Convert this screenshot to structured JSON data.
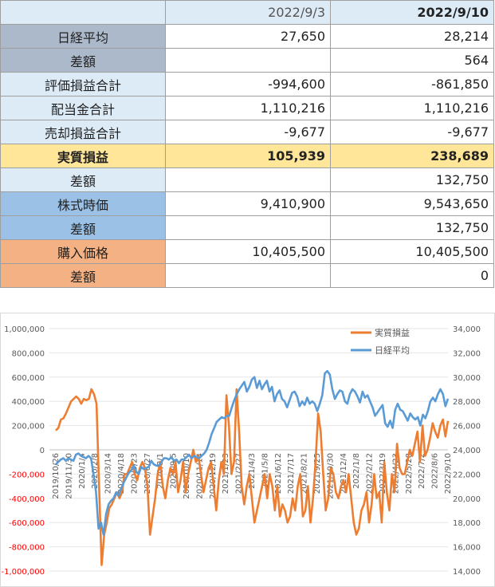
{
  "table": {
    "headers": [
      "",
      "2022/9/3",
      "2022/9/10"
    ],
    "rows": [
      {
        "label": "日経平均",
        "v1": "27,650",
        "v2": "28,214",
        "bg": "#acb9ca",
        "bold": false,
        "neg1": false,
        "neg2": false
      },
      {
        "label": "差額",
        "v1": "",
        "v2": "564",
        "bg": "#acb9ca",
        "bold": false,
        "neg1": false,
        "neg2": false
      },
      {
        "label": "評価損益合計",
        "v1": "-994,600",
        "v2": "-861,850",
        "bg": "#ddebf7",
        "bold": false,
        "neg1": true,
        "neg2": true
      },
      {
        "label": "配当金合計",
        "v1": "1,110,216",
        "v2": "1,110,216",
        "bg": "#ddebf7",
        "bold": false,
        "neg1": false,
        "neg2": false
      },
      {
        "label": "売却損益合計",
        "v1": "-9,677",
        "v2": "-9,677",
        "bg": "#ddebf7",
        "bold": false,
        "neg1": true,
        "neg2": true
      },
      {
        "label": "実質損益",
        "v1": "105,939",
        "v2": "238,689",
        "bg": "#ffe699",
        "bold": true,
        "rowbg": "#ffe699",
        "neg1": false,
        "neg2": false
      },
      {
        "label": "差額",
        "v1": "",
        "v2": "132,750",
        "bg": "#ddebf7",
        "bold": false,
        "neg1": false,
        "neg2": false
      },
      {
        "label": "株式時価",
        "v1": "9,410,900",
        "v2": "9,543,650",
        "bg": "#9bc2e6",
        "bold": false,
        "neg1": false,
        "neg2": false
      },
      {
        "label": "差額",
        "v1": "",
        "v2": "132,750",
        "bg": "#9bc2e6",
        "bold": false,
        "neg1": false,
        "neg2": false
      },
      {
        "label": "購入価格",
        "v1": "10,405,500",
        "v2": "10,405,500",
        "bg": "#f4b183",
        "bold": false,
        "neg1": false,
        "neg2": false
      },
      {
        "label": "差額",
        "v1": "",
        "v2": "0",
        "bg": "#f4b183",
        "bold": false,
        "neg1": false,
        "neg2": false
      }
    ]
  },
  "chart_data": {
    "type": "line",
    "left_axis": {
      "min": -1000000,
      "max": 1000000,
      "step": 200000,
      "tick_labels": [
        "1,000,000",
        "800,000",
        "600,000",
        "400,000",
        "200,000",
        "0",
        "-200,000",
        "-400,000",
        "-600,000",
        "-800,000",
        "-1,000,000"
      ]
    },
    "right_axis": {
      "min": 14000,
      "max": 34000,
      "step": 2000,
      "tick_labels": [
        "34,000",
        "32,000",
        "30,000",
        "28,000",
        "26,000",
        "24,000",
        "22,000",
        "20,000",
        "18,000",
        "16,000",
        "14,000"
      ]
    },
    "x_tick_labels": [
      "2019/10/26",
      "2019/11/30",
      "2020/1/4",
      "2020/2/8",
      "2020/3/14",
      "2020/4/18",
      "2020/5/23",
      "2020/6/27",
      "2020/8/1",
      "2020/9/5",
      "2020/10/10",
      "2020/11/14",
      "2020/12/19",
      "2021/1/23",
      "2021/2/27",
      "2021/4/3",
      "2021/5/8",
      "2021/6/12",
      "2021/7/17",
      "2021/8/21",
      "2021/9/25",
      "2021/10/30",
      "2021/12/4",
      "2022/1/8",
      "2022/2/12",
      "2022/3/19",
      "2022/4/23",
      "2022/5/28",
      "2022/7/2",
      "2022/8/6",
      "2022/9/10"
    ],
    "legend": {
      "position": "top-right"
    },
    "series": [
      {
        "name": "実質損益",
        "axis": "left",
        "color": "#ed7d31",
        "values": [
          160000,
          180000,
          250000,
          260000,
          300000,
          350000,
          400000,
          420000,
          440000,
          420000,
          380000,
          420000,
          410000,
          420000,
          500000,
          460000,
          380000,
          -300000,
          -950000,
          -700000,
          -600000,
          -480000,
          -450000,
          -400000,
          -350000,
          -400000,
          -350000,
          -200000,
          -200000,
          -150000,
          -100000,
          -200000,
          -250000,
          -150000,
          -100000,
          -150000,
          -300000,
          -700000,
          -550000,
          -400000,
          -200000,
          -100000,
          -300000,
          -400000,
          -250000,
          -150000,
          -200000,
          -100000,
          -350000,
          -250000,
          -100000,
          -350000,
          -200000,
          -100000,
          0,
          -100000,
          -50000,
          -200000,
          -350000,
          -250000,
          -150000,
          -100000,
          -300000,
          -500000,
          -250000,
          -100000,
          -200000,
          450000,
          200000,
          -200000,
          -100000,
          500000,
          150000,
          -300000,
          -450000,
          -300000,
          -200000,
          -400000,
          -600000,
          -500000,
          -400000,
          -300000,
          -200000,
          -400000,
          -200000,
          -300000,
          -500000,
          -300000,
          -550000,
          -450000,
          -500000,
          -600000,
          -550000,
          -400000,
          -500000,
          -300000,
          -200000,
          -550000,
          -500000,
          -300000,
          -600000,
          -400000,
          -100000,
          300000,
          150000,
          -200000,
          -500000,
          -400000,
          -150000,
          -200000,
          -350000,
          -400000,
          -300000,
          -250000,
          -350000,
          -200000,
          -400000,
          -600000,
          -700000,
          -650000,
          -500000,
          -450000,
          -350000,
          -600000,
          -450000,
          -200000,
          -400000,
          -350000,
          -600000,
          -100000,
          -350000,
          -500000,
          -200000,
          -350000,
          50000,
          -150000,
          -200000,
          -200000,
          -100000,
          0,
          -50000,
          50000,
          150000,
          -100000,
          200000,
          -50000,
          0,
          100000,
          220000,
          150000,
          100000,
          200000,
          250000,
          110000,
          238689
        ]
      },
      {
        "name": "日経平均",
        "axis": "right",
        "color": "#5b9bd5",
        "values": [
          22800,
          23000,
          23200,
          23300,
          23100,
          23300,
          23200,
          23100,
          23600,
          23700,
          23500,
          23400,
          23300,
          23500,
          23300,
          22000,
          20500,
          17500,
          18000,
          17000,
          18700,
          19500,
          19800,
          20000,
          20500,
          20200,
          20800,
          21300,
          21700,
          22100,
          22300,
          22700,
          22200,
          22000,
          22600,
          22400,
          22500,
          22600,
          23100,
          22800,
          22700,
          22700,
          23000,
          23300,
          23300,
          23200,
          23400,
          23100,
          23200,
          22900,
          23200,
          23200,
          23400,
          23600,
          23300,
          23500,
          23400,
          23300,
          23500,
          23700,
          24000,
          24600,
          25300,
          25800,
          26300,
          26500,
          26700,
          26600,
          26800,
          26800,
          27500,
          28100,
          28600,
          29000,
          29300,
          29600,
          28800,
          29200,
          29800,
          30000,
          29100,
          29700,
          29000,
          29400,
          29700,
          28800,
          29200,
          28000,
          28600,
          28900,
          28200,
          28000,
          27500,
          28100,
          28700,
          28800,
          28400,
          27600,
          28000,
          27700,
          28300,
          27800,
          28000,
          27800,
          27200,
          27800,
          28500,
          30300,
          30500,
          30200,
          29000,
          28200,
          28600,
          28900,
          28800,
          28000,
          27800,
          28600,
          29000,
          28800,
          28400,
          27900,
          28800,
          28300,
          28500,
          28000,
          27500,
          26800,
          27100,
          27400,
          27700,
          26200,
          25900,
          26400,
          25800,
          27300,
          27800,
          27300,
          27200,
          26800,
          26400,
          27000,
          26700,
          26500,
          26700,
          26000,
          26900,
          26600,
          27200,
          28000,
          28300,
          28000,
          28600,
          29000,
          28600,
          27600,
          28214
        ]
      }
    ]
  }
}
